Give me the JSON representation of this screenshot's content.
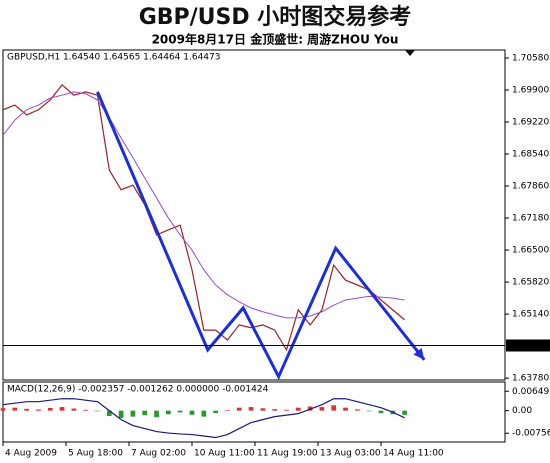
{
  "title": "GBP/USD 小时图交易参考",
  "subtitle": "2009年8月17日 金顶盛世: 周游ZHOU You",
  "chart_data": [
    {
      "type": "line",
      "header": "GBPUSD,H1 1.64540 1.64565 1.64464 1.64473",
      "x": [
        0,
        6,
        12,
        18,
        24,
        30,
        36,
        42,
        48,
        54,
        60,
        66,
        72,
        78,
        84,
        90,
        96,
        102,
        108,
        114,
        120,
        126,
        132,
        138,
        144,
        150,
        156,
        162,
        168,
        174,
        180,
        186,
        192,
        198,
        204
      ],
      "series": [
        {
          "name": "close",
          "color": "#a02020",
          "values": [
            1.6948,
            1.6958,
            1.6937,
            1.6948,
            1.6969,
            1.7001,
            1.6979,
            1.6986,
            1.6979,
            1.682,
            1.6778,
            1.6788,
            1.6746,
            1.6682,
            1.6693,
            1.6703,
            1.6608,
            1.648,
            1.648,
            1.6459,
            1.6491,
            1.6485,
            1.6491,
            1.648,
            1.6438,
            1.6523,
            1.6491,
            1.6523,
            1.6618,
            1.6586,
            1.6576,
            1.6565,
            1.6544,
            1.6523,
            1.6502
          ]
        },
        {
          "name": "MA",
          "color": "#9a4ad0",
          "values": [
            1.6894,
            1.6926,
            1.6948,
            1.6958,
            1.6973,
            1.6979,
            1.6986,
            1.6982,
            1.6969,
            1.6931,
            1.6888,
            1.6846,
            1.6803,
            1.6761,
            1.6718,
            1.6682,
            1.665,
            1.6608,
            1.6576,
            1.6555,
            1.654,
            1.6527,
            1.6519,
            1.6512,
            1.6506,
            1.6506,
            1.651,
            1.6519,
            1.6533,
            1.6544,
            1.6548,
            1.6552,
            1.655,
            1.6548,
            1.6544
          ]
        }
      ],
      "trend": {
        "color": "#1a2ee0",
        "x": [
          48,
          104,
          122,
          140,
          169,
          214
        ],
        "values": [
          1.6986,
          1.6438,
          1.6527,
          1.6381,
          1.6654,
          1.6417
        ]
      },
      "last_price": 1.64473,
      "xlim": [
        0,
        255
      ],
      "xticks": [
        {
          "value": 0,
          "label": "4 Aug 2009"
        },
        {
          "value": 32,
          "label": "5 Aug 18:00"
        },
        {
          "value": 64,
          "label": "7 Aug 02:00"
        },
        {
          "value": 96,
          "label": "10 Aug 11:00"
        },
        {
          "value": 128,
          "label": "11 Aug 19:00"
        },
        {
          "value": 160,
          "label": "13 Aug 03:00"
        },
        {
          "value": 192,
          "label": "14 Aug 11:00"
        }
      ],
      "ylim": [
        1.6374,
        1.7075
      ],
      "yticks": [
        {
          "value": 1.7058,
          "label": "1.70580"
        },
        {
          "value": 1.699,
          "label": "1.69900"
        },
        {
          "value": 1.6922,
          "label": "1.69220"
        },
        {
          "value": 1.6854,
          "label": "1.68540"
        },
        {
          "value": 1.6786,
          "label": "1.67860"
        },
        {
          "value": 1.6718,
          "label": "1.67180"
        },
        {
          "value": 1.665,
          "label": "1.66500"
        },
        {
          "value": 1.6582,
          "label": "1.65820"
        },
        {
          "value": 1.6514,
          "label": "1.65140"
        },
        {
          "value": 1.6378,
          "label": "1.63780"
        }
      ]
    },
    {
      "type": "bar",
      "header": "MACD(12,26,9) -0.002357 -0.001262 0.000000 -0.001424",
      "x": [
        0,
        6,
        12,
        18,
        24,
        30,
        36,
        42,
        48,
        54,
        60,
        66,
        72,
        78,
        84,
        90,
        96,
        102,
        108,
        114,
        120,
        126,
        132,
        138,
        144,
        150,
        156,
        162,
        168,
        174,
        180,
        186,
        192,
        198,
        204
      ],
      "up_color": "#e03030",
      "down_color": "#2a9a2a",
      "values": [
        0.0008,
        0.001,
        0.0006,
        0.0004,
        0.0009,
        0.0012,
        0.0007,
        0.0003,
        -0.0002,
        -0.0018,
        -0.0025,
        -0.002,
        -0.0015,
        -0.0022,
        -0.0012,
        -0.0006,
        -0.0014,
        -0.002,
        -0.0008,
        0.0002,
        0.001,
        0.0012,
        0.0008,
        0.0005,
        0.0003,
        0.001,
        0.0014,
        0.0012,
        0.0018,
        0.001,
        0.0004,
        -0.0002,
        -0.0008,
        -0.0012,
        -0.0014
      ],
      "line": {
        "color": "#1a1a80",
        "values": [
          0.002,
          0.0025,
          0.003,
          0.003,
          0.0035,
          0.004,
          0.004,
          0.0035,
          0.003,
          0.0,
          -0.003,
          -0.005,
          -0.006,
          -0.007,
          -0.0075,
          -0.0078,
          -0.008,
          -0.0085,
          -0.009,
          -0.008,
          -0.006,
          -0.004,
          -0.003,
          -0.002,
          -0.0015,
          -0.001,
          0.0005,
          0.002,
          0.004,
          0.004,
          0.003,
          0.002,
          0.001,
          -0.0005,
          -0.0024
        ]
      },
      "xlim": [
        0,
        255
      ],
      "ylim": [
        -0.0105,
        0.0096
      ],
      "yticks": [
        0.006498,
        {
          "value": 0,
          "label": "0.00"
        },
        -0.00756
      ]
    }
  ]
}
